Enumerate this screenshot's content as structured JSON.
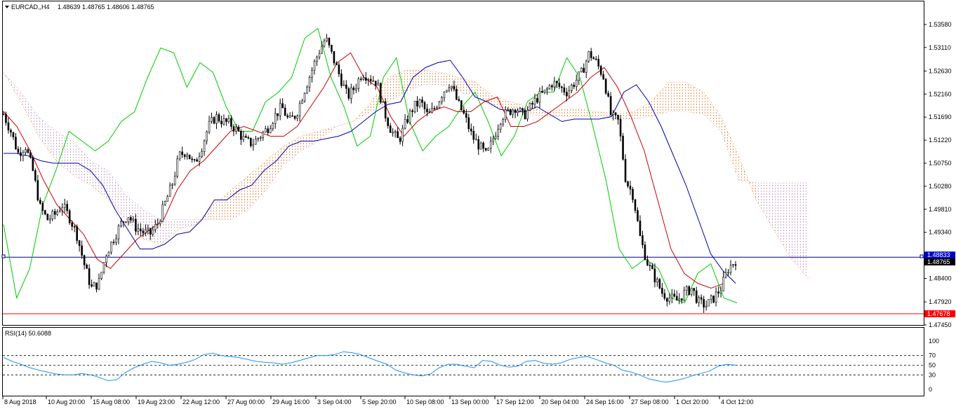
{
  "chart_data": [
    {
      "type": "candlestick",
      "title": "EURCAD,,H4",
      "ohlc_header": "1.48639 1.48765 1.48606 1.48765",
      "ylim": [
        1.4745,
        1.5405
      ],
      "yticks": [
        "1.53580",
        "1.53110",
        "1.52630",
        "1.52160",
        "1.51690",
        "1.51220",
        "1.50750",
        "1.50280",
        "1.49810",
        "1.49340",
        "1.48400",
        "1.47920",
        "1.47450"
      ],
      "xticks": [
        "8 Aug 2018",
        "10 Aug 20:00",
        "15 Aug 08:00",
        "19 Aug 23:00",
        "22 Aug 12:00",
        "27 Aug 00:00",
        "29 Aug 16:00",
        "3 Sep 04:00",
        "5 Sep 20:00",
        "10 Sep 08:00",
        "13 Sep 00:00",
        "17 Sep 12:00",
        "20 Sep 04:00",
        "24 Sep 16:00",
        "27 Sep 08:00",
        "1 Oct 20:00",
        "4 Oct 12:00"
      ],
      "price_labels": [
        {
          "value": "1.48833",
          "color": "#0000cc"
        },
        {
          "value": "1.48765",
          "color": "#000000"
        },
        {
          "value": "1.47678",
          "color": "#ff0000"
        }
      ],
      "hlines": [
        {
          "value": 1.48833,
          "color": "#000080"
        },
        {
          "value": 1.47678,
          "color": "#ff0000"
        }
      ],
      "close_path": [
        1.5175,
        1.514,
        1.5095,
        1.511,
        1.506,
        1.4985,
        1.496,
        1.497,
        1.499,
        1.4965,
        1.493,
        1.487,
        1.482,
        1.483,
        1.489,
        1.492,
        1.495,
        1.497,
        1.4945,
        1.4935,
        1.493,
        1.495,
        1.499,
        1.503,
        1.509,
        1.51,
        1.507,
        1.5105,
        1.515,
        1.517,
        1.516,
        1.5155,
        1.514,
        1.512,
        1.5115,
        1.513,
        1.5145,
        1.517,
        1.519,
        1.516,
        1.5175,
        1.522,
        1.526,
        1.53,
        1.533,
        1.529,
        1.525,
        1.521,
        1.523,
        1.526,
        1.525,
        1.524,
        1.518,
        1.514,
        1.512,
        1.516,
        1.519,
        1.52,
        1.517,
        1.519,
        1.522,
        1.524,
        1.52,
        1.517,
        1.513,
        1.511,
        1.509,
        1.513,
        1.517,
        1.518,
        1.519,
        1.517,
        1.519,
        1.521,
        1.522,
        1.524,
        1.523,
        1.522,
        1.524,
        1.526,
        1.53,
        1.528,
        1.525,
        1.517,
        1.516,
        1.504,
        1.501,
        1.492,
        1.487,
        1.484,
        1.481,
        1.48,
        1.4795,
        1.481,
        1.482,
        1.479,
        1.4785,
        1.48,
        1.482,
        1.486,
        1.4877
      ],
      "kijun": [
        1.5095,
        1.5095,
        1.509,
        1.508,
        1.5075,
        1.5075,
        1.5075,
        1.506,
        1.503,
        1.498,
        1.494,
        1.49,
        1.49,
        1.491,
        1.493,
        1.4935,
        1.496,
        1.5,
        1.5,
        1.502,
        1.503,
        1.506,
        1.508,
        1.511,
        1.512,
        1.512,
        1.5125,
        1.513,
        1.514,
        1.516,
        1.518,
        1.5195,
        1.52,
        1.525,
        1.527,
        1.528,
        1.5285,
        1.525,
        1.521,
        1.52,
        1.5185,
        1.518,
        1.518,
        1.519,
        1.5175,
        1.516,
        1.5165,
        1.5165,
        1.5165,
        1.517,
        1.522,
        1.5235,
        1.52,
        1.515,
        1.509,
        1.503,
        1.496,
        1.489,
        1.4855,
        1.483
      ],
      "tenkan": [
        1.518,
        1.515,
        1.51,
        1.504,
        1.499,
        1.496,
        1.493,
        1.488,
        1.486,
        1.489,
        1.492,
        1.494,
        1.496,
        1.502,
        1.506,
        1.508,
        1.511,
        1.514,
        1.515,
        1.514,
        1.513,
        1.513,
        1.515,
        1.519,
        1.523,
        1.528,
        1.53,
        1.525,
        1.523,
        1.517,
        1.513,
        1.516,
        1.518,
        1.519,
        1.518,
        1.518,
        1.52,
        1.521,
        1.515,
        1.515,
        1.516,
        1.518,
        1.52,
        1.522,
        1.525,
        1.527,
        1.523,
        1.517,
        1.51,
        1.5,
        1.49,
        1.485,
        1.483,
        1.482,
        1.483
      ],
      "chikou": [
        1.495,
        1.48,
        1.486,
        1.499,
        1.506,
        1.514,
        1.512,
        1.51,
        1.512,
        1.516,
        1.518,
        1.525,
        1.531,
        1.53,
        1.523,
        1.528,
        1.526,
        1.519,
        1.514,
        1.514,
        1.52,
        1.522,
        1.525,
        1.533,
        1.535,
        1.525,
        1.519,
        1.511,
        1.513,
        1.525,
        1.529,
        1.516,
        1.51,
        1.513,
        1.515,
        1.519,
        1.522,
        1.516,
        1.509,
        1.513,
        1.52,
        1.522,
        1.522,
        1.529,
        1.525,
        1.515,
        1.504,
        1.49,
        1.486,
        1.488,
        1.486,
        1.48,
        1.479,
        1.485,
        1.487,
        1.48,
        1.479
      ],
      "cloud_span_a": [
        1.526,
        1.52,
        1.513,
        1.508,
        1.505,
        1.503,
        1.5,
        1.496,
        1.492,
        1.491,
        1.494,
        1.495,
        1.499,
        1.502,
        1.505,
        1.508,
        1.511,
        1.513,
        1.514,
        1.515,
        1.516,
        1.52,
        1.525,
        1.5265,
        1.5265,
        1.526,
        1.525,
        1.524,
        1.521,
        1.52,
        1.519,
        1.518,
        1.5185,
        1.5185,
        1.518,
        1.5175,
        1.518,
        1.52,
        1.524,
        1.524,
        1.522,
        1.517,
        1.509,
        1.5,
        1.494,
        1.488,
        1.484
      ],
      "cloud_span_b": [
        1.526,
        1.522,
        1.517,
        1.514,
        1.512,
        1.508,
        1.506,
        1.501,
        1.498,
        1.496,
        1.496,
        1.496,
        1.496,
        1.496,
        1.498,
        1.502,
        1.507,
        1.51,
        1.512,
        1.515,
        1.516,
        1.518,
        1.52,
        1.522,
        1.5235,
        1.5235,
        1.522,
        1.521,
        1.519,
        1.518,
        1.5175,
        1.517,
        1.517,
        1.517,
        1.517,
        1.5165,
        1.5165,
        1.517,
        1.518,
        1.518,
        1.5175,
        1.514,
        1.504,
        1.5035,
        1.5035,
        1.5035,
        1.5035
      ]
    },
    {
      "type": "line",
      "title": "RSI(14) 50.6088",
      "ylim": [
        0,
        100
      ],
      "yticks": [
        "100",
        "70",
        "50",
        "30",
        "0"
      ],
      "levels": [
        70,
        50,
        30
      ],
      "values": [
        66,
        58,
        52,
        45,
        40,
        36,
        32,
        30,
        30,
        33,
        30,
        25,
        18,
        20,
        35,
        45,
        52,
        58,
        55,
        50,
        52,
        56,
        62,
        72,
        75,
        70,
        68,
        66,
        62,
        58,
        56,
        55,
        52,
        55,
        60,
        65,
        70,
        70,
        72,
        78,
        76,
        72,
        65,
        58,
        52,
        40,
        34,
        30,
        28,
        32,
        45,
        52,
        52,
        48,
        45,
        60,
        58,
        50,
        46,
        48,
        58,
        60,
        54,
        52,
        55,
        62,
        66,
        68,
        62,
        55,
        50,
        40,
        36,
        30,
        22,
        18,
        15,
        18,
        22,
        28,
        33,
        38,
        48,
        52,
        50
      ]
    }
  ]
}
